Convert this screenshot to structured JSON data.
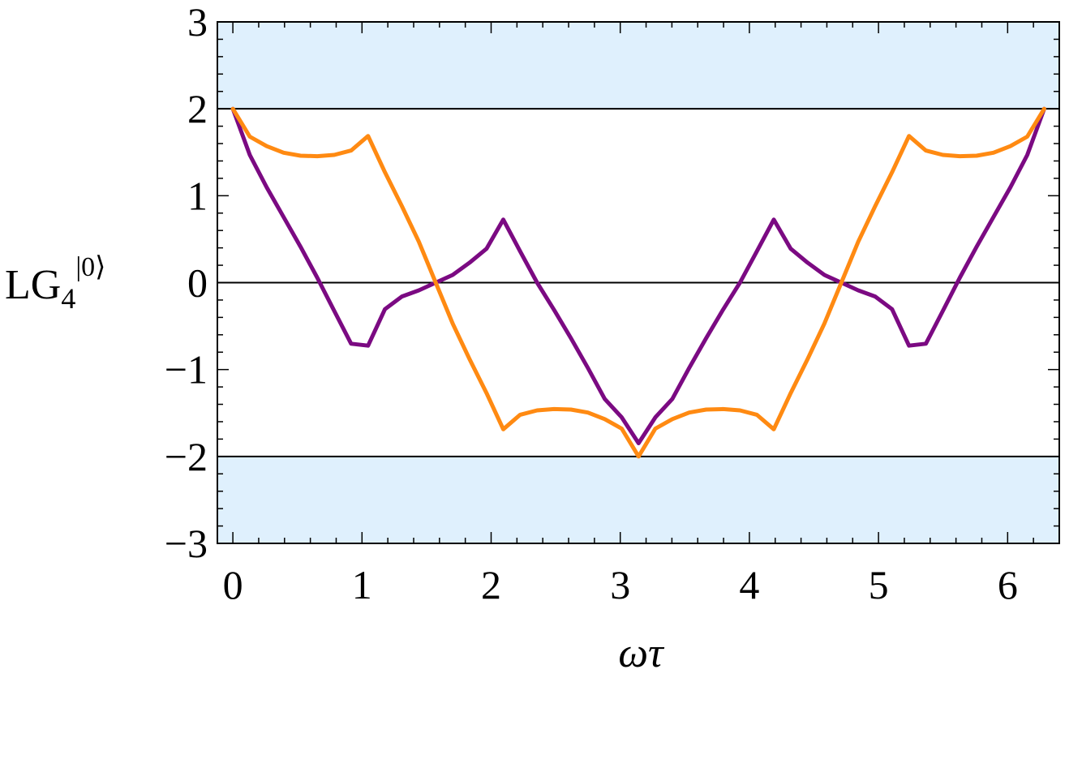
{
  "chart_data": {
    "type": "line",
    "title": "",
    "xlabel": "ωτ",
    "ylabel": {
      "base": "LG",
      "sub": "4",
      "sup": "|0⟩"
    },
    "xlim": [
      -0.12,
      6.4
    ],
    "ylim": [
      -3,
      3
    ],
    "x_ticks": [
      0,
      1,
      2,
      3,
      4,
      5,
      6
    ],
    "x_tick_labels": [
      "0",
      "1",
      "2",
      "3",
      "4",
      "5",
      "6"
    ],
    "y_ticks": [
      3,
      2,
      1,
      0,
      -1,
      -2,
      -3
    ],
    "y_tick_labels": [
      "3",
      "2",
      "1",
      "0",
      "−1",
      "−2",
      "−3"
    ],
    "reference_lines": [
      2,
      0,
      -2
    ],
    "shaded_regions": [
      {
        "from": 2,
        "to": 3
      },
      {
        "from": -3,
        "to": -2
      }
    ],
    "grid": false,
    "series": [
      {
        "color": "#7b0a82",
        "x": [
          0,
          0.131,
          0.262,
          0.393,
          0.524,
          0.654,
          0.785,
          0.916,
          1.047,
          1.178,
          1.309,
          1.44,
          1.571,
          1.702,
          1.833,
          1.964,
          2.094,
          2.225,
          2.356,
          2.487,
          2.618,
          2.749,
          2.88,
          3.011,
          3.142,
          3.272,
          3.403,
          3.534,
          3.665,
          3.796,
          3.927,
          4.058,
          4.189,
          4.32,
          4.451,
          4.581,
          4.712,
          4.843,
          4.974,
          5.105,
          5.236,
          5.367,
          5.498,
          5.629,
          5.76,
          5.89,
          6.021,
          6.152,
          6.283
        ],
        "y": [
          2.0,
          1.469,
          1.096,
          0.754,
          0.413,
          0.056,
          -0.326,
          -0.703,
          -0.725,
          -0.305,
          -0.16,
          -0.089,
          0.0,
          0.089,
          0.23,
          0.39,
          0.725,
          0.36,
          0.0,
          -0.312,
          -0.639,
          -0.982,
          -1.338,
          -1.55,
          -1.848,
          -1.55,
          -1.338,
          -0.982,
          -0.639,
          -0.312,
          0.0,
          0.36,
          0.725,
          0.39,
          0.23,
          0.089,
          0.0,
          -0.089,
          -0.16,
          -0.305,
          -0.725,
          -0.703,
          -0.326,
          0.056,
          0.413,
          0.754,
          1.096,
          1.469,
          2.0
        ]
      },
      {
        "color": "#ff8a12",
        "x": [
          0,
          0.131,
          0.262,
          0.393,
          0.524,
          0.654,
          0.785,
          0.916,
          1.047,
          1.178,
          1.309,
          1.44,
          1.571,
          1.702,
          1.833,
          1.964,
          2.094,
          2.225,
          2.356,
          2.487,
          2.618,
          2.749,
          2.88,
          3.011,
          3.142,
          3.272,
          3.403,
          3.534,
          3.665,
          3.796,
          3.927,
          4.058,
          4.189,
          4.32,
          4.451,
          4.581,
          4.712,
          4.843,
          4.974,
          5.105,
          5.236,
          5.367,
          5.498,
          5.629,
          5.76,
          5.89,
          6.021,
          6.152,
          6.283
        ],
        "y": [
          2.0,
          1.68,
          1.57,
          1.495,
          1.46,
          1.455,
          1.47,
          1.52,
          1.687,
          1.27,
          0.88,
          0.47,
          0.0,
          -0.47,
          -0.88,
          -1.27,
          -1.687,
          -1.52,
          -1.47,
          -1.455,
          -1.46,
          -1.495,
          -1.57,
          -1.68,
          -2.0,
          -1.68,
          -1.57,
          -1.495,
          -1.46,
          -1.455,
          -1.47,
          -1.52,
          -1.687,
          -1.27,
          -0.88,
          -0.47,
          0.0,
          0.47,
          0.88,
          1.27,
          1.687,
          1.52,
          1.47,
          1.455,
          1.46,
          1.495,
          1.57,
          1.68,
          2.0
        ]
      }
    ]
  }
}
